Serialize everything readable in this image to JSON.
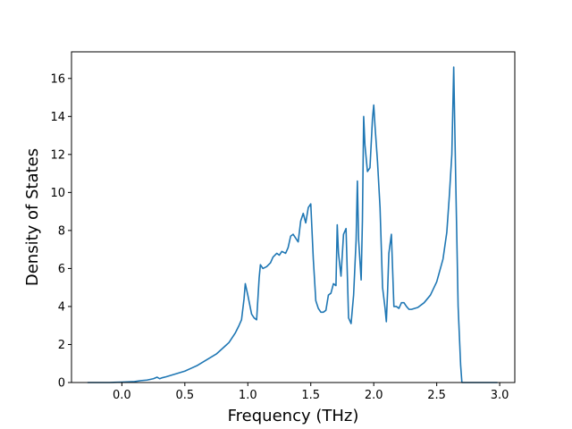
{
  "chart_data": {
    "type": "line",
    "title": "",
    "xlabel": "Frequency (THz)",
    "ylabel": "Density of States",
    "xlim": [
      -0.4,
      3.12
    ],
    "ylim": [
      0,
      17.4
    ],
    "xticks": [
      0.0,
      0.5,
      1.0,
      1.5,
      2.0,
      2.5,
      3.0
    ],
    "xtick_labels": [
      "0.0",
      "0.5",
      "1.0",
      "1.5",
      "2.0",
      "2.5",
      "3.0"
    ],
    "yticks": [
      0,
      2,
      4,
      6,
      8,
      10,
      12,
      14,
      16
    ],
    "ytick_labels": [
      "0",
      "2",
      "4",
      "6",
      "8",
      "10",
      "12",
      "14",
      "16"
    ],
    "grid": false,
    "color": "#1f77b4",
    "series": [
      {
        "x": [
          -0.27,
          -0.1,
          0.0,
          0.1,
          0.15,
          0.2,
          0.25,
          0.28,
          0.3,
          0.32,
          0.35,
          0.4,
          0.45,
          0.5,
          0.55,
          0.6,
          0.65,
          0.7,
          0.75,
          0.8,
          0.85,
          0.9,
          0.93,
          0.95,
          0.97,
          0.98,
          1.0,
          1.03,
          1.05,
          1.07,
          1.09,
          1.1,
          1.12,
          1.15,
          1.18,
          1.2,
          1.23,
          1.25,
          1.27,
          1.3,
          1.32,
          1.34,
          1.36,
          1.38,
          1.4,
          1.42,
          1.44,
          1.46,
          1.48,
          1.5,
          1.52,
          1.54,
          1.56,
          1.58,
          1.6,
          1.62,
          1.64,
          1.66,
          1.68,
          1.7,
          1.71,
          1.72,
          1.74,
          1.76,
          1.78,
          1.8,
          1.82,
          1.84,
          1.86,
          1.87,
          1.88,
          1.9,
          1.91,
          1.92,
          1.93,
          1.95,
          1.97,
          1.99,
          2.0,
          2.01,
          2.03,
          2.05,
          2.07,
          2.09,
          2.1,
          2.11,
          2.12,
          2.14,
          2.16,
          2.18,
          2.2,
          2.22,
          2.24,
          2.26,
          2.28,
          2.3,
          2.35,
          2.4,
          2.45,
          2.5,
          2.55,
          2.58,
          2.6,
          2.62,
          2.635,
          2.65,
          2.67,
          2.69,
          2.7,
          2.8,
          2.98
        ],
        "y": [
          0,
          0,
          0.02,
          0.05,
          0.1,
          0.13,
          0.2,
          0.28,
          0.2,
          0.25,
          0.3,
          0.4,
          0.5,
          0.6,
          0.75,
          0.9,
          1.1,
          1.3,
          1.5,
          1.8,
          2.1,
          2.6,
          3.0,
          3.3,
          4.4,
          5.2,
          4.6,
          3.6,
          3.4,
          3.3,
          5.5,
          6.2,
          6.0,
          6.1,
          6.3,
          6.6,
          6.8,
          6.7,
          6.9,
          6.8,
          7.1,
          7.7,
          7.8,
          7.6,
          7.4,
          8.5,
          8.9,
          8.4,
          9.2,
          9.4,
          6.5,
          4.3,
          3.9,
          3.7,
          3.7,
          3.8,
          4.6,
          4.7,
          5.2,
          5.1,
          8.3,
          6.8,
          5.6,
          7.8,
          8.1,
          3.4,
          3.1,
          4.6,
          7.5,
          10.6,
          7.5,
          5.4,
          8.5,
          14.0,
          12.5,
          11.1,
          11.3,
          13.9,
          14.6,
          13.5,
          11.6,
          9.2,
          5.0,
          3.9,
          3.2,
          4.8,
          6.8,
          7.8,
          4.0,
          4.0,
          3.9,
          4.2,
          4.2,
          4.0,
          3.85,
          3.85,
          3.95,
          4.2,
          4.6,
          5.3,
          6.5,
          7.9,
          9.8,
          12.0,
          16.6,
          11.0,
          4.0,
          0.9,
          0,
          0,
          0
        ]
      }
    ]
  }
}
